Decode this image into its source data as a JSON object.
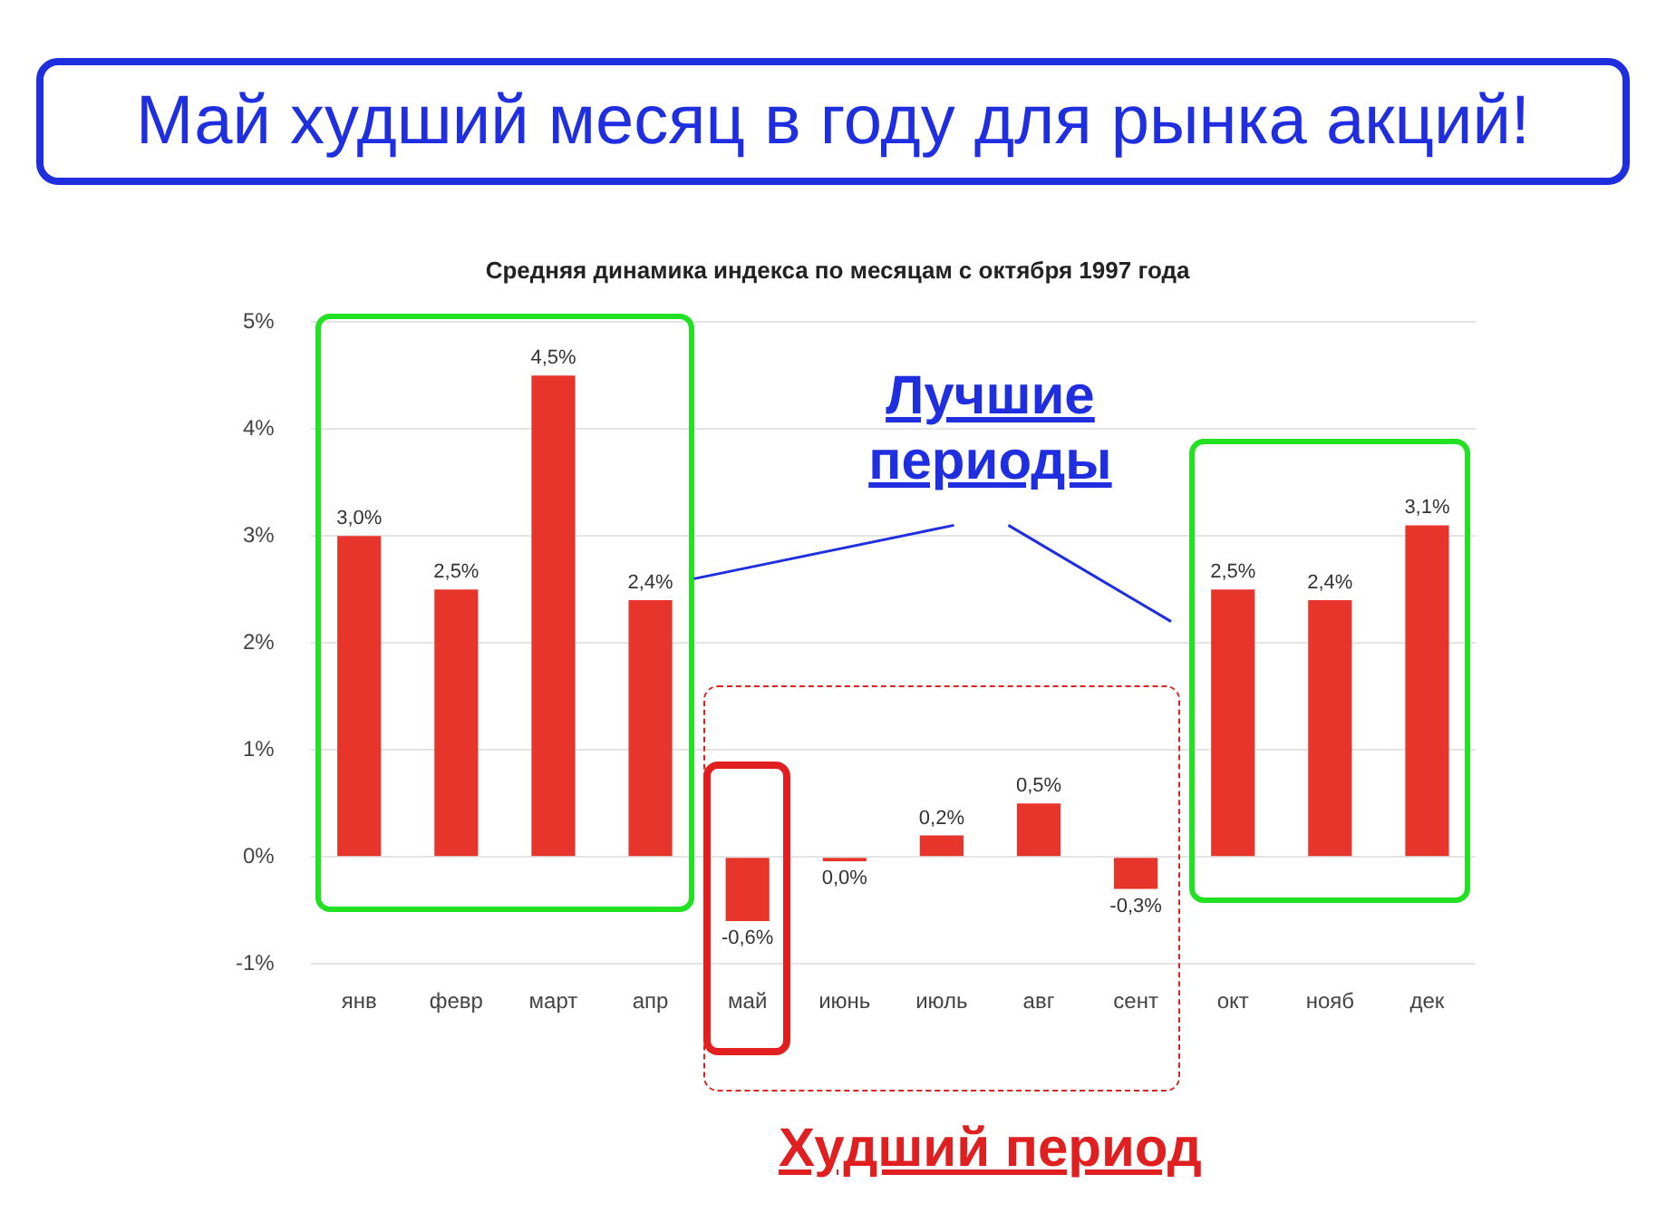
{
  "chart_data": {
    "type": "bar",
    "title": "Май худший месяц в году для рынка акций!",
    "subtitle": "Средняя динамика индекса по месяцам с октября 1997 года",
    "categories": [
      "янв",
      "февр",
      "март",
      "апр",
      "май",
      "июнь",
      "июль",
      "авг",
      "сент",
      "окт",
      "нояб",
      "дек"
    ],
    "values": [
      3.0,
      2.5,
      4.5,
      2.4,
      -0.6,
      -0.04,
      0.2,
      0.5,
      -0.3,
      2.5,
      2.4,
      3.1
    ],
    "value_labels": [
      "3,0%",
      "2,5%",
      "4,5%",
      "2,4%",
      "-0,6%",
      "0,0%",
      "0,2%",
      "0,5%",
      "-0,3%",
      "2,5%",
      "2,4%",
      "3,1%"
    ],
    "color": "#e8352b",
    "ylim": [
      -1,
      5
    ],
    "yticks": [
      {
        "value": -1,
        "label": "-1%"
      },
      {
        "value": 0,
        "label": "0%"
      },
      {
        "value": 1,
        "label": "1%"
      },
      {
        "value": 2,
        "label": "2%"
      },
      {
        "value": 3,
        "label": "3%"
      },
      {
        "value": 4,
        "label": "4%"
      },
      {
        "value": 5,
        "label": "5%"
      }
    ],
    "grid": "y",
    "legend": false,
    "annotations": [
      "Лучшие периоды",
      "Худший период"
    ]
  }
}
